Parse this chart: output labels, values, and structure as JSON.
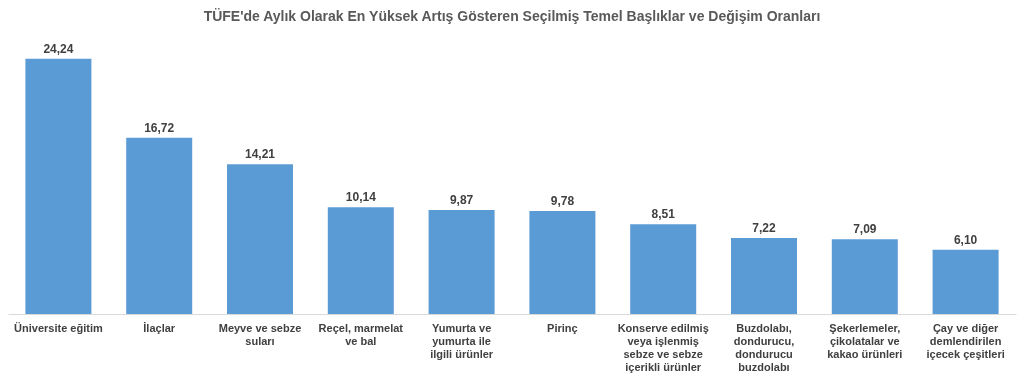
{
  "chart_data": {
    "type": "bar",
    "title": "TÜFE'de Aylık Olarak En Yüksek Artış Gösteren Seçilmiş Temel Başlıklar ve Değişim Oranları",
    "categories": [
      "Üniversite eğitim",
      "İlaçlar",
      "Meyve ve sebze suları",
      "Reçel, marmelat ve bal",
      "Yumurta ve yumurta ile ilgili ürünler",
      "Pirinç",
      "Konserve edilmiş veya işlenmiş sebze ve sebze içerikli ürünler",
      "Buzdolabı, dondurucu, dondurucu buzdolabı",
      "Şekerlemeler, çikolatalar ve kakao ürünleri",
      "Çay ve diğer demlendirilen içecek çeşitleri"
    ],
    "values": [
      24.24,
      16.72,
      14.21,
      10.14,
      9.87,
      9.78,
      8.51,
      7.22,
      7.09,
      6.1
    ],
    "value_labels": [
      "24,24",
      "16,72",
      "14,21",
      "10,14",
      "9,87",
      "9,78",
      "8,51",
      "7,22",
      "7,09",
      "6,10"
    ],
    "color": "#5b9bd5",
    "grid": false
  }
}
